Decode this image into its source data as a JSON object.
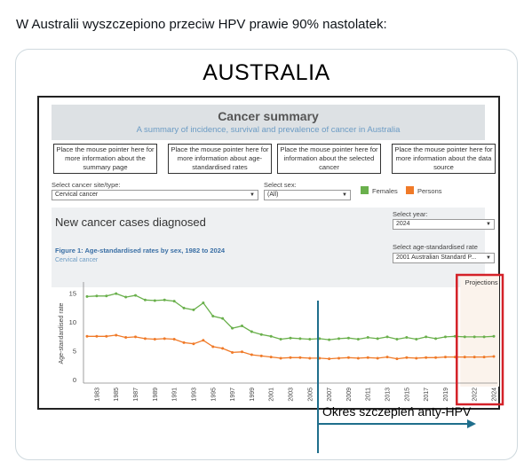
{
  "post": {
    "text": "W Australii wyszczepiono przeciw HPV prawie 90% nastolatek:"
  },
  "card": {
    "title": "AUSTRALIA",
    "annotation": "Okres szczepień anty-HPV"
  },
  "dashboard": {
    "title": "Cancer summary",
    "subtitle": "A summary of incidence, survival and prevalence of cancer in Australia",
    "info_boxes": [
      "Place the mouse pointer here for more information about the summary page",
      "Place the mouse pointer here for more information about age-standardised rates",
      "Place the mouse pointer here for information about the selected cancer",
      "Place the mouse pointer here for more information about the data source"
    ],
    "cancer_site_label": "Select cancer site/type:",
    "cancer_site_value": "Cervical cancer",
    "sex_label": "Select sex:",
    "sex_value": "(All)",
    "legend": [
      {
        "label": "Females",
        "color": "#6ab04c"
      },
      {
        "label": "Persons",
        "color": "#f07a28"
      }
    ],
    "section_title": "New cancer cases diagnosed",
    "year_label": "Select year:",
    "year_value": "2024",
    "figure_title": "Figure 1: Age-standardised rates by sex, 1982 to 2024",
    "figure_subtitle": "Cervical cancer",
    "rate_label": "Select age-standardised rate",
    "rate_value": "2001 Australian Standard P..."
  },
  "chart_data": {
    "type": "line",
    "ylabel": "Age-standardised rate",
    "ylim": [
      0,
      16
    ],
    "yticks": [
      0,
      5,
      10,
      15
    ],
    "x": [
      1982,
      1983,
      1984,
      1985,
      1986,
      1987,
      1988,
      1989,
      1990,
      1991,
      1992,
      1993,
      1994,
      1995,
      1996,
      1997,
      1998,
      1999,
      2000,
      2001,
      2002,
      2003,
      2004,
      2005,
      2006,
      2007,
      2008,
      2009,
      2010,
      2011,
      2012,
      2013,
      2014,
      2015,
      2016,
      2017,
      2018,
      2019,
      2020,
      2021,
      2022,
      2023,
      2024
    ],
    "xtick_labels": [
      "1983",
      "1985",
      "1987",
      "1989",
      "1991",
      "1993",
      "1995",
      "1997",
      "1999",
      "2001",
      "2003",
      "2005",
      "2007",
      "2009",
      "2011",
      "2013",
      "2015",
      "2017",
      "2019",
      "2022",
      "2024"
    ],
    "series": [
      {
        "name": "Females",
        "color": "#6ab04c",
        "values": [
          14.4,
          14.5,
          14.5,
          14.9,
          14.3,
          14.6,
          13.8,
          13.7,
          13.8,
          13.6,
          12.4,
          12.1,
          13.3,
          11.0,
          10.6,
          8.9,
          9.3,
          8.3,
          7.8,
          7.5,
          7.0,
          7.2,
          7.1,
          7.0,
          7.1,
          6.9,
          7.1,
          7.2,
          7.0,
          7.3,
          7.1,
          7.4,
          7.0,
          7.3,
          7.0,
          7.4,
          7.1,
          7.4,
          7.5,
          7.4,
          7.4,
          7.4,
          7.5
        ]
      },
      {
        "name": "Persons",
        "color": "#f07a28",
        "values": [
          7.5,
          7.5,
          7.5,
          7.7,
          7.3,
          7.4,
          7.1,
          7.0,
          7.1,
          7.0,
          6.4,
          6.2,
          6.8,
          5.7,
          5.4,
          4.7,
          4.8,
          4.3,
          4.1,
          3.9,
          3.7,
          3.8,
          3.8,
          3.7,
          3.7,
          3.6,
          3.7,
          3.8,
          3.7,
          3.8,
          3.7,
          3.9,
          3.6,
          3.8,
          3.7,
          3.8,
          3.8,
          3.9,
          3.9,
          3.9,
          3.9,
          3.9,
          4.0
        ]
      }
    ],
    "projection_label": "Projections",
    "projection_from": 2021
  }
}
